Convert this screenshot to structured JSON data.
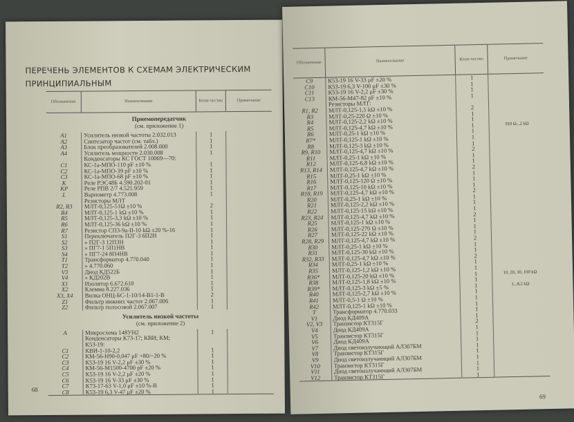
{
  "left_page": {
    "title": "ПЕРЕЧЕНЬ ЭЛЕМЕНТОВ К СХЕМАМ ЭЛЕКТРИЧЕСКИМ ПРИНЦИПИАЛЬНЫМ",
    "headers": {
      "designation": "Обозначение",
      "name": "Наименование",
      "qty": "Коли-чество",
      "note": "Примечание"
    },
    "sections": [
      {
        "title": "Приемопередатчик",
        "subtitle": "(см. приложение 1)",
        "rows": [
          [
            "A1",
            "Усилитель низкой частоты 2.032.013",
            "1",
            ""
          ],
          [
            "A2",
            "Синтезатор частот (см. табл.)",
            "1",
            ""
          ],
          [
            "A3",
            "Блок преобразователей 2.008.000",
            "1",
            ""
          ],
          [
            "A4",
            "Усилитель мощности 2.030.008",
            "1",
            ""
          ],
          [
            "",
            "Конденсаторы КС ГОСТ 10069—70:",
            "",
            ""
          ],
          [
            "C1",
            "КС-1а-МПО-110 pF ±10 %",
            "1",
            ""
          ],
          [
            "C2",
            "КС-1а-МПО-39 pF ±10 %",
            "1",
            ""
          ],
          [
            "C3",
            "КС-1а-МПО-68 pF ±10 %",
            "1",
            ""
          ],
          [
            "K",
            "Реле РЭС48Б 4.590.202-01",
            "1",
            ""
          ],
          [
            "KP",
            "Реле РПВ 2/7 4.521.959",
            "1",
            ""
          ],
          [
            "L",
            "Вариометр 4.773.008",
            "1",
            ""
          ],
          [
            "",
            "Резисторы МЛТ",
            "",
            ""
          ],
          [
            "R2, R3",
            "МЛТ-0,125-51Ω ±10 %",
            "2",
            ""
          ],
          [
            "R4",
            "МЛТ-0,125-1 kΩ ±10 %",
            "1",
            ""
          ],
          [
            "R5",
            "МЛТ-0,125-3,3 kΩ ±10 %",
            "1",
            ""
          ],
          [
            "R6",
            "МЛТ-0,125-36 kΩ ±10 %",
            "1",
            ""
          ],
          [
            "R7",
            "Резистор СП3-9а-II-10 kΩ ±20 %-16",
            "1",
            ""
          ],
          [
            "S1",
            "Переключатель П2Г-3 6П2Н",
            "1",
            ""
          ],
          [
            "S2",
            "      »         П2Г-3 12П3Н",
            "1",
            ""
          ],
          [
            "S3",
            "      »         ПГ7-1 5П1НВ",
            "1",
            ""
          ],
          [
            "S4",
            "      »         ПГ7-24 8П4НВ",
            "1",
            ""
          ],
          [
            "T1",
            "Трансформатор 4.770.040",
            "1",
            ""
          ],
          [
            "T2",
            "      »            4.770.060",
            "1",
            ""
          ],
          [
            "V3",
            "Диод КД522Б",
            "1",
            ""
          ],
          [
            "V4",
            "  »   КД202В",
            "1",
            ""
          ],
          [
            "X1",
            "Изолятор 6.672.610",
            "1",
            ""
          ],
          [
            "X2",
            "Клемма 8.227.036",
            "1",
            ""
          ],
          [
            "X3, X4",
            "Вилка ОНЦ-БС-1-10/14-В1-1-В",
            "2",
            ""
          ],
          [
            "Z1",
            "Фильтр нижних частот 2.067.006",
            "1",
            ""
          ],
          [
            "Z2",
            "Фильтр полосовой 2.067.007",
            "1",
            ""
          ]
        ]
      },
      {
        "title": "Усилитель низкой частоты",
        "subtitle": "(см. приложение 2)",
        "rows": [
          [
            "A",
            "Микросхема 148УН2",
            "1",
            ""
          ],
          [
            "",
            "Конденсаторы К73-17; КВИ; КМ;",
            "",
            ""
          ],
          [
            "",
            "К53-19:",
            "",
            ""
          ],
          [
            "C1",
            "КВИ-1-10-2,2",
            "1",
            ""
          ],
          [
            "C2",
            "КМ-56-Н90-0,047 μF +80/−20 %",
            "1",
            ""
          ],
          [
            "C3",
            "К53-19 16 V-2,2 μF ±30 %",
            "1",
            ""
          ],
          [
            "C4",
            "КМ-56-М1500-4700 pF ±20 %",
            "1",
            ""
          ],
          [
            "C5",
            "К53-19 16 V-2,2 μF ±20 %",
            "1",
            ""
          ],
          [
            "C6",
            "К53-19 16 V-33 μF ±30 %",
            "1",
            ""
          ],
          [
            "C7",
            "К73-17-63 V-1,0 μF ±10 %-В",
            "1",
            ""
          ],
          [
            "C8",
            "К53-19 6,3 V-47 μF ±20 %",
            "1",
            ""
          ]
        ]
      }
    ],
    "page_number": "68"
  },
  "right_page": {
    "headers": {
      "designation": "Обозначение",
      "name": "Наименование",
      "qty": "Коли-чество",
      "note": "Примечание"
    },
    "rows": [
      [
        "C9",
        "К53-19 16 V-33 μF ±20 %",
        "1",
        ""
      ],
      [
        "C10",
        "К53-19 6,3 V-100 μF ±30 %",
        "1",
        ""
      ],
      [
        "C11",
        "К53-19 16 V-2,2 μF ±30 %",
        "1",
        ""
      ],
      [
        "C13",
        "КМ-56-М47-82 pF ±10 %",
        "1",
        ""
      ],
      [
        "",
        "Резисторы МЛТ:",
        "",
        ""
      ],
      [
        "R1, R2",
        "МЛТ-0,125-1,5 kΩ ±10 %",
        "2",
        ""
      ],
      [
        "R3",
        "МЛТ-0,25-220 Ω ±10 %",
        "1",
        ""
      ],
      [
        "R4",
        "МЛТ-0,125-2,2 kΩ ±10 %",
        "1",
        ""
      ],
      [
        "R5",
        "МЛТ-0,125-4,7 kΩ ±10 %",
        "1",
        "910 Ω...2 kΩ"
      ],
      [
        "R6",
        "МЛТ-0,25-1 kΩ ±10 %",
        "1",
        ""
      ],
      [
        "R7*",
        "МЛТ-0,125-1 kΩ ±10 %",
        "1",
        ""
      ],
      [
        "R8",
        "МЛТ-0,125-3 kΩ ±10 %",
        "1",
        ""
      ],
      [
        "R9, R10",
        "МЛТ-0,125-4,7 kΩ ±10 %",
        "2",
        ""
      ],
      [
        "R11",
        "МЛТ-0,25-1 kΩ ±10 %",
        "1",
        ""
      ],
      [
        "R12",
        "МЛТ-0,125-6,8 kΩ ±10 %",
        "1",
        ""
      ],
      [
        "R13, R14",
        "МЛТ-0,125-4,7 kΩ ±10 %",
        "2",
        ""
      ],
      [
        "R15",
        "МЛТ-0,25-1 kΩ ±10 %",
        "1",
        ""
      ],
      [
        "R16",
        "МЛТ-0,125-120 Ω ±10 %",
        "1",
        ""
      ],
      [
        "R17",
        "МЛТ-0,125-10 kΩ ±10 %",
        "1",
        ""
      ],
      [
        "R18, R19",
        "МЛТ-0,125-4,7 kΩ ±10 %",
        "2",
        ""
      ],
      [
        "R20",
        "МЛТ-0,25-1 kΩ ±10 %",
        "1",
        ""
      ],
      [
        "R21",
        "МЛТ-0,125-2,2 kΩ ±10 %",
        "1",
        ""
      ],
      [
        "R22",
        "МЛТ-0,125-15 kΩ ±10 %",
        "1",
        ""
      ],
      [
        "R23, R24",
        "МЛТ-0,125-4,7 kΩ ±10 %",
        "2",
        ""
      ],
      [
        "R25",
        "МЛТ-0,125-1 kΩ ±10 %",
        "1",
        ""
      ],
      [
        "R26",
        "МЛТ-0,125-270 Ω ±10 %",
        "1",
        ""
      ],
      [
        "R27",
        "МЛТ-0,125-22 kΩ ±10 %",
        "1",
        ""
      ],
      [
        "R28, R29",
        "МЛТ-0,125-4,7 kΩ ±10 %",
        "2",
        ""
      ],
      [
        "R30",
        "МЛТ-0,25-1 kΩ ±10 %",
        "1",
        ""
      ],
      [
        "R31",
        "МЛТ-0,125-30 kΩ ±10 %",
        "1",
        ""
      ],
      [
        "R32, R33",
        "МЛТ-0,125-4,7 kΩ ±10 %",
        "2",
        ""
      ],
      [
        "R34",
        "МЛТ-0,25-1 kΩ ±10 %",
        "1",
        ""
      ],
      [
        "R35",
        "МЛТ-0,125-1,2 kΩ ±10 %",
        "1",
        ""
      ],
      [
        "R36*",
        "МЛТ-0,125-20 kΩ ±10 %",
        "1",
        "10, 20, 30, 100 kΩ"
      ],
      [
        "R38",
        "МЛТ-0,125-1,8 kΩ ±10 %",
        "1",
        ""
      ],
      [
        "R39*",
        "МЛТ-0,125-3 kΩ ±5 %",
        "1",
        "1...8,2 kΩ"
      ],
      [
        "R40",
        "МЛТ-0,125-2,7 kΩ ±10 %",
        "1",
        ""
      ],
      [
        "R41",
        "МЛТ-0,5-1 Ω ±10 %",
        "1",
        ""
      ],
      [
        "R42",
        "МЛТ-0,125-1 kΩ ±10 %",
        "1",
        ""
      ],
      [
        "T",
        "Трансформатор 4.770.033",
        "1",
        ""
      ],
      [
        "V1",
        "Диод КД409А",
        "1",
        ""
      ],
      [
        "V2, V3",
        "Транзистор КТ315Г",
        "2",
        ""
      ],
      [
        "V4",
        "Диод КД409А",
        "1",
        ""
      ],
      [
        "V5",
        "Транзистор КТ315Г",
        "1",
        ""
      ],
      [
        "V6",
        "Диод КД409А",
        "1",
        ""
      ],
      [
        "V7",
        "Диод светоизлучающий АЛ307БМ",
        "1",
        ""
      ],
      [
        "V8",
        "Транзистор КТ315Г",
        "1",
        ""
      ],
      [
        "V9",
        "Диод светоизлучающий АЛ307БМ",
        "1",
        ""
      ],
      [
        "V10",
        "Транзистор КТ315Г",
        "1",
        ""
      ],
      [
        "V11",
        "Диод светоизлучающий АЛ307БМ",
        "1",
        ""
      ],
      [
        "V12",
        "Транзистор КТ315Г",
        "1",
        ""
      ]
    ],
    "page_number": "69"
  }
}
